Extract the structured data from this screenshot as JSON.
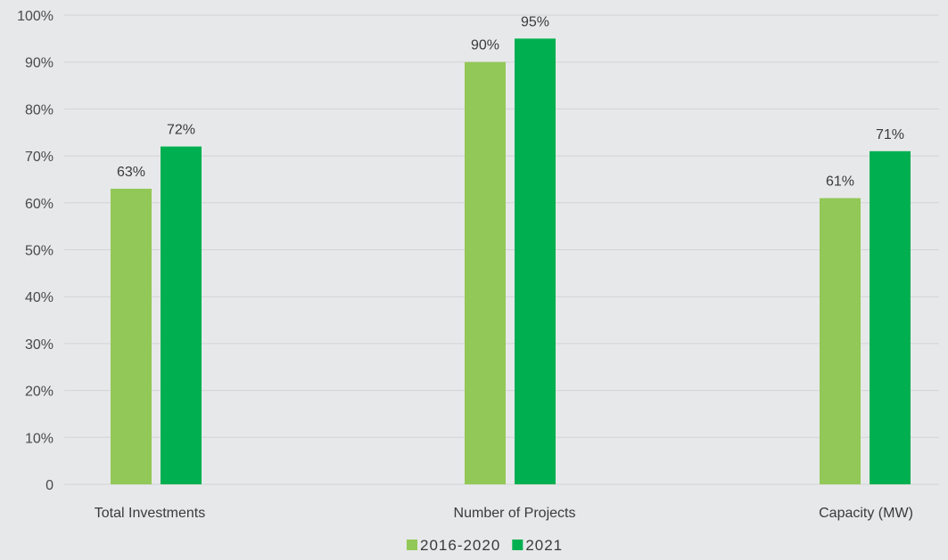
{
  "chart_data": {
    "type": "bar",
    "categories": [
      "Total Investments",
      "Number of Projects",
      "Capacity (MW)"
    ],
    "series": [
      {
        "name": "2016-2020",
        "values": [
          63,
          90,
          61
        ],
        "color": "#92c857"
      },
      {
        "name": "2021",
        "values": [
          72,
          95,
          71
        ],
        "color": "#00b050"
      }
    ],
    "data_labels": [
      [
        "63%",
        "90%",
        "61%"
      ],
      [
        "72%",
        "95%",
        "71%"
      ]
    ],
    "y_ticks": [
      {
        "value": 0,
        "label": "0"
      },
      {
        "value": 10,
        "label": "10%"
      },
      {
        "value": 20,
        "label": "20%"
      },
      {
        "value": 30,
        "label": "30%"
      },
      {
        "value": 40,
        "label": "40%"
      },
      {
        "value": 50,
        "label": "50%"
      },
      {
        "value": 60,
        "label": "60%"
      },
      {
        "value": 70,
        "label": "70%"
      },
      {
        "value": 80,
        "label": "80%"
      },
      {
        "value": 90,
        "label": "90%"
      },
      {
        "value": 100,
        "label": "100%"
      }
    ],
    "ylim": [
      0,
      100
    ],
    "title": "",
    "xlabel": "",
    "ylabel": "",
    "grid": true,
    "legend_position": "bottom-center"
  }
}
